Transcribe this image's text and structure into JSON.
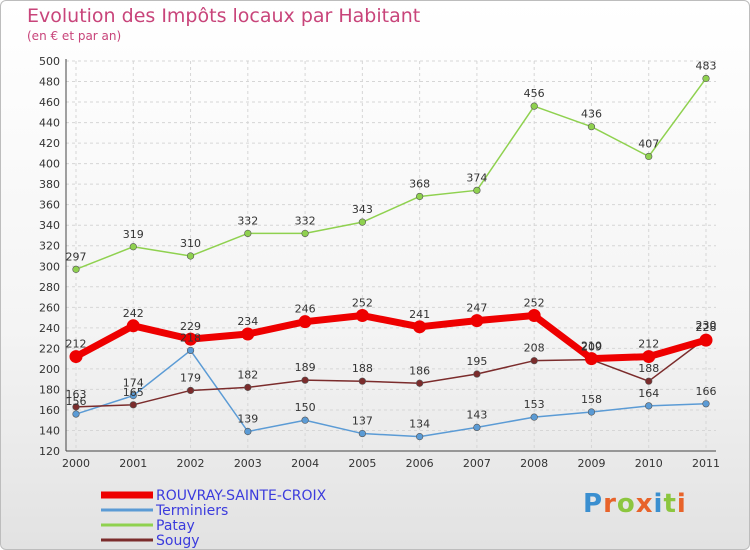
{
  "header": {
    "title": "Evolution des Impôts locaux par Habitant",
    "subtitle": "(en € et par an)"
  },
  "logo": {
    "text": "Proxiti",
    "letter_colors": [
      "#3a8fd0",
      "#e8632a",
      "#8cc63f",
      "#e8632a",
      "#3a8fd0",
      "#8cc63f",
      "#e8632a"
    ]
  },
  "chart_data": {
    "type": "line",
    "title": "Evolution des Impôts locaux par Habitant",
    "subtitle": "(en € et par an)",
    "categories": [
      "2000",
      "2001",
      "2002",
      "2003",
      "2004",
      "2005",
      "2006",
      "2007",
      "2008",
      "2009",
      "2010",
      "2011"
    ],
    "ylim": [
      120,
      500
    ],
    "yticks": [
      120,
      140,
      160,
      180,
      200,
      220,
      240,
      260,
      280,
      300,
      320,
      340,
      360,
      380,
      400,
      420,
      440,
      460,
      480,
      500
    ],
    "grid": true,
    "legend_position": "bottom-left",
    "series": [
      {
        "name": "ROUVRAY-SAINTE-CROIX",
        "color": "#ee0000",
        "emphasis": true,
        "values": [
          212,
          242,
          229,
          234,
          246,
          252,
          241,
          247,
          252,
          210,
          212,
          228
        ],
        "labels": [
          "212",
          "242",
          "229",
          "234",
          "246",
          "252",
          "241",
          "247",
          "252",
          "210",
          "212",
          "228"
        ]
      },
      {
        "name": "Terminiers",
        "color": "#5b9bd5",
        "emphasis": false,
        "values": [
          156,
          174,
          218,
          139,
          150,
          137,
          134,
          143,
          153,
          158,
          164,
          166
        ],
        "labels": [
          "156",
          "174",
          "218",
          "139",
          "150",
          "137",
          "134",
          "143",
          "153",
          "158",
          "164",
          "166"
        ]
      },
      {
        "name": "Patay",
        "color": "#8fd14f",
        "emphasis": false,
        "values": [
          297,
          319,
          310,
          332,
          332,
          343,
          368,
          374,
          456,
          436,
          407,
          483
        ],
        "labels": [
          "297",
          "319",
          "310",
          "332",
          "332",
          "343",
          "368",
          "374",
          "456",
          "436",
          "407",
          "483"
        ]
      },
      {
        "name": "Sougy",
        "color": "#7b2c2c",
        "emphasis": false,
        "values": [
          163,
          165,
          179,
          182,
          189,
          188,
          186,
          195,
          208,
          209,
          188,
          230
        ],
        "labels": [
          "163",
          "165",
          "179",
          "182",
          "189",
          "188",
          "186",
          "195",
          "208",
          "209",
          "188",
          "230"
        ]
      }
    ]
  }
}
